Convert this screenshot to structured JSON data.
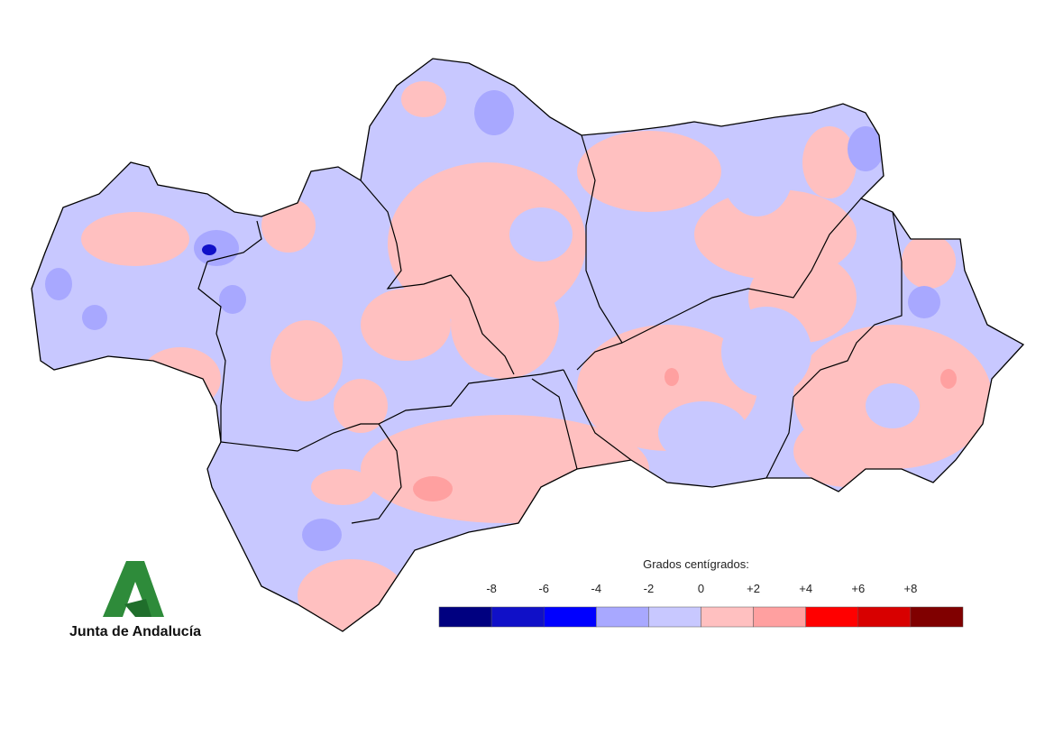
{
  "legend": {
    "title": "Grados centígrados:",
    "ticks": [
      -8,
      -6,
      -4,
      -2,
      0,
      {
        "value": 2,
        "label": "+2"
      },
      {
        "value": 4,
        "label": "+4"
      },
      {
        "value": 6,
        "label": "+6"
      },
      {
        "value": 8,
        "label": "+8"
      }
    ],
    "colors": [
      "#000080",
      "#1010c8",
      "#0000ff",
      "#a8a8ff",
      "#c8c8ff",
      "#ffc0c0",
      "#ffa0a0",
      "#ff0000",
      "#d80000",
      "#800000"
    ]
  },
  "logo": {
    "text": "Junta de Andalucía"
  }
}
